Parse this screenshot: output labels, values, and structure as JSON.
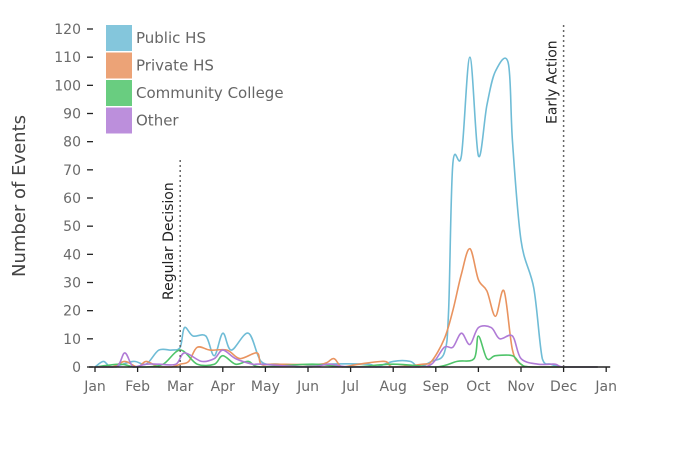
{
  "chart_data": {
    "type": "line",
    "ylabel": "Number of Events",
    "xlabel": "",
    "ylim": [
      0,
      120
    ],
    "yticks": [
      0,
      10,
      20,
      30,
      40,
      50,
      60,
      70,
      80,
      90,
      100,
      110,
      120
    ],
    "x_tick_labels": [
      "Jan",
      "Feb",
      "Mar",
      "Apr",
      "May",
      "Jun",
      "Jul",
      "Aug",
      "Sep",
      "Oct",
      "Nov",
      "Dec",
      "Jan"
    ],
    "legend_position": "top-left",
    "annotations": [
      {
        "label": "Regular Decision",
        "month": 2.0,
        "y_top": 73
      },
      {
        "label": "Early Action",
        "month": 11.0,
        "y_top": 120
      }
    ],
    "series": [
      {
        "name": "Public HS",
        "color": "#6fbcd6",
        "points": [
          [
            0.0,
            0
          ],
          [
            0.2,
            2
          ],
          [
            0.4,
            0
          ],
          [
            0.9,
            2
          ],
          [
            1.2,
            1
          ],
          [
            1.5,
            6
          ],
          [
            1.8,
            6
          ],
          [
            2.0,
            7
          ],
          [
            2.1,
            14
          ],
          [
            2.3,
            11
          ],
          [
            2.6,
            11
          ],
          [
            2.8,
            4
          ],
          [
            3.0,
            12
          ],
          [
            3.2,
            6
          ],
          [
            3.6,
            12
          ],
          [
            3.9,
            2
          ],
          [
            4.3,
            1
          ],
          [
            4.8,
            0
          ],
          [
            5.4,
            1
          ],
          [
            6.4,
            1
          ],
          [
            6.6,
            0
          ],
          [
            7.0,
            2
          ],
          [
            7.4,
            2
          ],
          [
            7.6,
            0
          ],
          [
            7.9,
            2
          ],
          [
            8.2,
            5
          ],
          [
            8.3,
            20
          ],
          [
            8.4,
            72
          ],
          [
            8.6,
            75
          ],
          [
            8.8,
            110
          ],
          [
            9.0,
            75
          ],
          [
            9.2,
            93
          ],
          [
            9.4,
            105
          ],
          [
            9.7,
            108
          ],
          [
            9.8,
            80
          ],
          [
            10.0,
            45
          ],
          [
            10.3,
            28
          ],
          [
            10.5,
            3
          ],
          [
            10.7,
            1
          ],
          [
            11.0,
            0
          ],
          [
            11.8,
            0
          ]
        ]
      },
      {
        "name": "Private HS",
        "color": "#e9935f",
        "points": [
          [
            0.0,
            0
          ],
          [
            0.4,
            0
          ],
          [
            0.7,
            2
          ],
          [
            1.0,
            0
          ],
          [
            1.2,
            2
          ],
          [
            1.5,
            0
          ],
          [
            1.8,
            0
          ],
          [
            2.0,
            1
          ],
          [
            2.2,
            2
          ],
          [
            2.4,
            7
          ],
          [
            2.7,
            6
          ],
          [
            3.1,
            6
          ],
          [
            3.4,
            3
          ],
          [
            3.8,
            5
          ],
          [
            3.9,
            1
          ],
          [
            4.2,
            1
          ],
          [
            5.3,
            1
          ],
          [
            5.6,
            3
          ],
          [
            5.8,
            0
          ],
          [
            6.2,
            1
          ],
          [
            6.8,
            2
          ],
          [
            7.0,
            0
          ],
          [
            7.7,
            1
          ],
          [
            7.9,
            2
          ],
          [
            8.2,
            10
          ],
          [
            8.4,
            20
          ],
          [
            8.6,
            33
          ],
          [
            8.8,
            42
          ],
          [
            9.0,
            31
          ],
          [
            9.2,
            27
          ],
          [
            9.4,
            18
          ],
          [
            9.6,
            27
          ],
          [
            9.8,
            6
          ],
          [
            10.0,
            1
          ],
          [
            10.3,
            0
          ],
          [
            11.8,
            0
          ]
        ]
      },
      {
        "name": "Community College",
        "color": "#4fc46a",
        "points": [
          [
            0.0,
            0
          ],
          [
            0.6,
            1
          ],
          [
            0.9,
            0
          ],
          [
            1.2,
            0
          ],
          [
            1.6,
            1
          ],
          [
            2.0,
            6
          ],
          [
            2.4,
            1
          ],
          [
            2.8,
            1
          ],
          [
            3.0,
            4
          ],
          [
            3.3,
            1
          ],
          [
            3.6,
            2
          ],
          [
            3.9,
            0
          ],
          [
            5.1,
            1
          ],
          [
            6.0,
            0
          ],
          [
            7.0,
            1
          ],
          [
            8.0,
            0
          ],
          [
            8.5,
            2
          ],
          [
            8.9,
            3
          ],
          [
            9.0,
            11
          ],
          [
            9.2,
            3
          ],
          [
            9.4,
            4
          ],
          [
            9.8,
            4
          ],
          [
            10.0,
            1
          ],
          [
            10.3,
            0
          ],
          [
            11.8,
            0
          ]
        ]
      },
      {
        "name": "Other",
        "color": "#b07bd6",
        "points": [
          [
            0.0,
            0
          ],
          [
            0.5,
            0
          ],
          [
            0.7,
            5
          ],
          [
            0.9,
            0
          ],
          [
            1.2,
            1
          ],
          [
            1.5,
            1
          ],
          [
            1.9,
            1
          ],
          [
            2.1,
            5
          ],
          [
            2.5,
            2
          ],
          [
            2.8,
            3
          ],
          [
            3.0,
            6
          ],
          [
            3.3,
            3
          ],
          [
            3.7,
            1
          ],
          [
            3.9,
            1
          ],
          [
            5.0,
            0
          ],
          [
            5.5,
            1
          ],
          [
            6.0,
            0
          ],
          [
            7.5,
            0
          ],
          [
            7.9,
            1
          ],
          [
            8.2,
            7
          ],
          [
            8.4,
            7
          ],
          [
            8.6,
            12
          ],
          [
            8.8,
            8
          ],
          [
            9.0,
            14
          ],
          [
            9.3,
            14
          ],
          [
            9.5,
            10
          ],
          [
            9.8,
            11
          ],
          [
            10.0,
            3
          ],
          [
            10.4,
            1
          ],
          [
            10.8,
            1
          ],
          [
            11.0,
            0
          ],
          [
            11.8,
            0
          ]
        ]
      }
    ]
  }
}
